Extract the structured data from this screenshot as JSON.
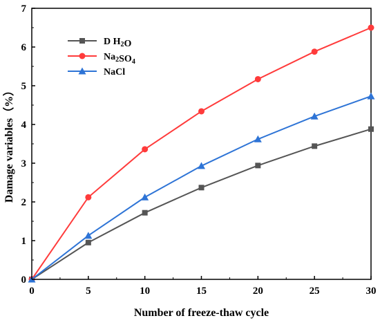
{
  "chart_data": {
    "type": "line",
    "title": "",
    "xlabel": "Number of freeze-thaw cycle",
    "ylabel": "Damage variables（%）",
    "x": [
      0,
      5,
      10,
      15,
      20,
      25,
      30
    ],
    "xlim": [
      0,
      30
    ],
    "ylim": [
      0,
      7
    ],
    "xticks": [
      0,
      5,
      10,
      15,
      20,
      25,
      30
    ],
    "yticks": [
      0,
      1,
      2,
      3,
      4,
      5,
      6,
      7
    ],
    "grid": false,
    "legend_position": "top-left",
    "series": [
      {
        "name": "D H2O",
        "color": "#555555",
        "marker": "square",
        "values": [
          0,
          0.95,
          1.72,
          2.37,
          2.94,
          3.44,
          3.88
        ]
      },
      {
        "name": "Na2SO4",
        "color": "#ff3b3b",
        "marker": "circle",
        "values": [
          0,
          2.12,
          3.36,
          4.34,
          5.17,
          5.88,
          6.5
        ]
      },
      {
        "name": "NaCl",
        "color": "#2e74d6",
        "marker": "triangle",
        "values": [
          0,
          1.13,
          2.12,
          2.93,
          3.62,
          4.21,
          4.73
        ]
      }
    ]
  }
}
